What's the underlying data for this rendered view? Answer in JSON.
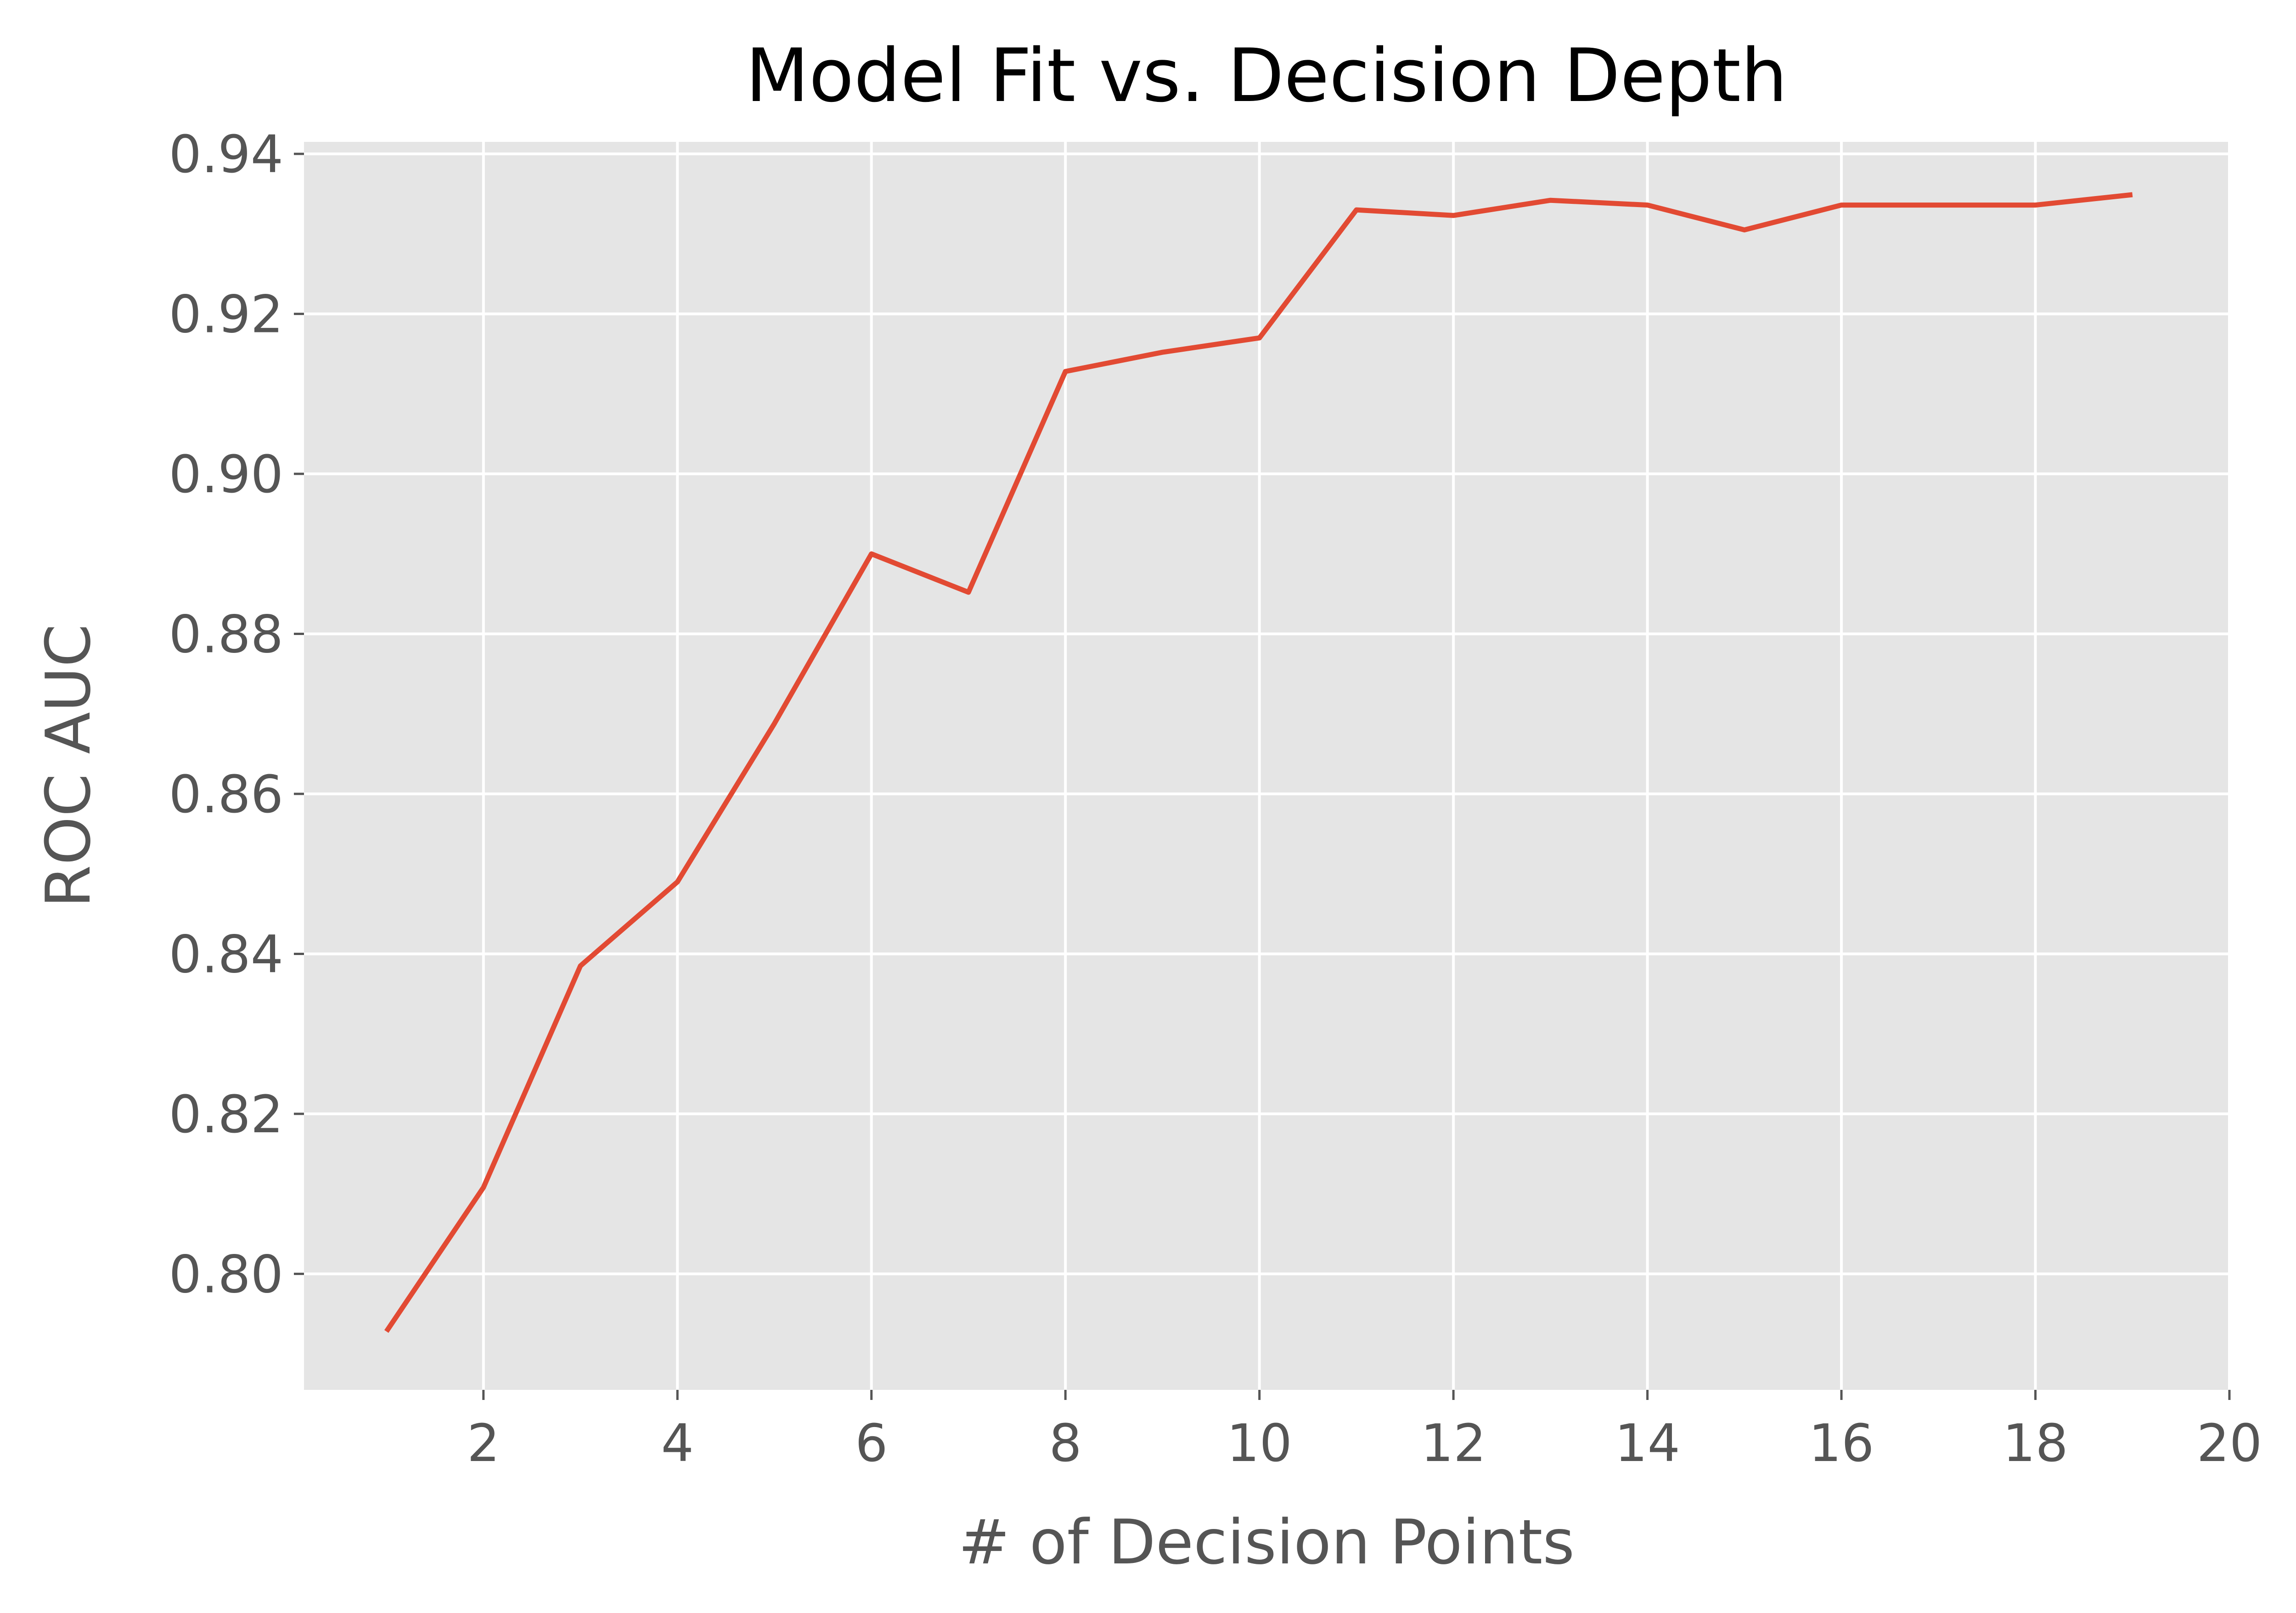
{
  "chart_data": {
    "type": "line",
    "title": "Model Fit vs. Decision Depth",
    "xlabel": "# of Decision Points",
    "ylabel": "ROC AUC",
    "xlim": [
      0.15,
      20
    ],
    "ylim": [
      0.7855,
      0.9415
    ],
    "xticks": [
      2,
      4,
      6,
      8,
      10,
      12,
      14,
      16,
      18,
      20
    ],
    "xtick_labels": [
      "2",
      "4",
      "6",
      "8",
      "10",
      "12",
      "14",
      "16",
      "18",
      "20"
    ],
    "yticks": [
      0.8,
      0.82,
      0.84,
      0.86,
      0.88,
      0.9,
      0.92,
      0.94
    ],
    "ytick_labels": [
      "0.80",
      "0.82",
      "0.84",
      "0.86",
      "0.88",
      "0.90",
      "0.92",
      "0.94"
    ],
    "grid": true,
    "colors": {
      "line": "#E24A33",
      "background": "#E5E5E5",
      "grid": "#FFFFFF"
    },
    "series": [
      {
        "x": [
          1,
          2,
          3,
          4,
          5,
          6,
          7,
          8,
          9,
          10,
          11,
          12,
          13,
          14,
          15,
          16,
          17,
          18,
          19
        ],
        "values": [
          0.7928,
          0.8108,
          0.8385,
          0.849,
          0.8688,
          0.89,
          0.8852,
          0.9128,
          0.9152,
          0.917,
          0.933,
          0.9323,
          0.9342,
          0.9336,
          0.9305,
          0.9336,
          0.9336,
          0.9336,
          0.9349
        ]
      }
    ]
  }
}
